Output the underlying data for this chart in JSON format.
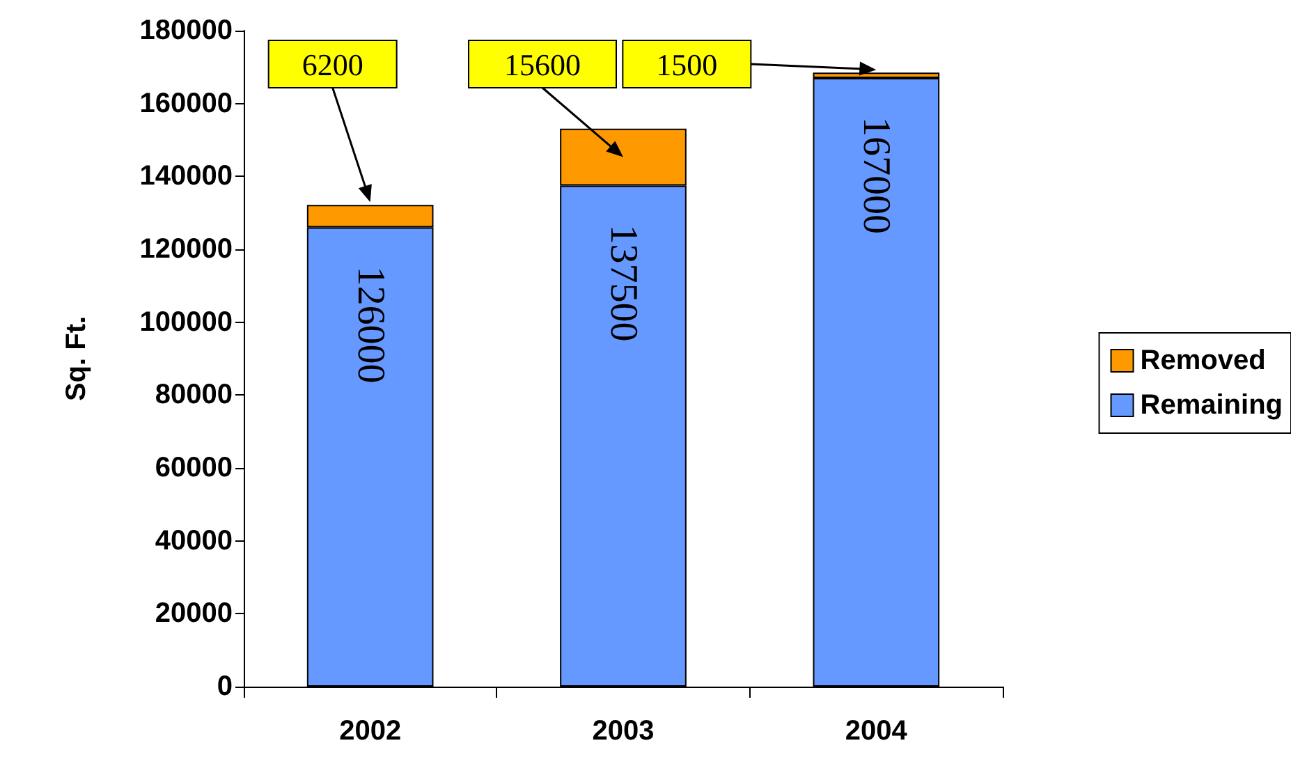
{
  "chart_data": {
    "type": "bar",
    "ylabel": "Sq. Ft.",
    "categories": [
      "2002",
      "2003",
      "2004"
    ],
    "stacked": true,
    "legend": "right",
    "grid": false,
    "annotations": [
      "6200",
      "15600",
      "1500"
    ],
    "ylim": [
      0,
      180000
    ],
    "yticks": [
      0,
      20000,
      40000,
      60000,
      80000,
      100000,
      120000,
      140000,
      160000,
      180000
    ],
    "series": [
      {
        "name": "Remaining",
        "color": "#6699ff",
        "values": [
          126000,
          137500,
          167000
        ],
        "value_labels": [
          "126000",
          "137500",
          "167000"
        ]
      },
      {
        "name": "Removed",
        "color": "#ff9900",
        "values": [
          6200,
          15600,
          1500
        ]
      }
    ]
  }
}
